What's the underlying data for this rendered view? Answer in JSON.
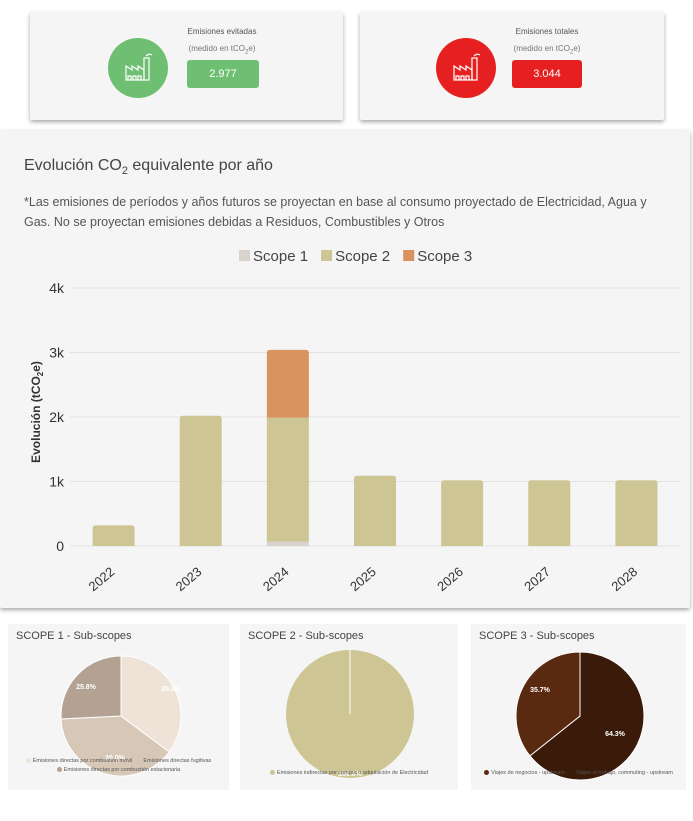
{
  "kpis": {
    "avoided": {
      "title": "Emisiones evitadas",
      "unit_prefix": "(medido en tCO",
      "unit_sub": "2",
      "unit_suffix": "e)",
      "value": "2.977",
      "color": "#6fbf73"
    },
    "total": {
      "title": "Emisiones totales",
      "unit_prefix": "(medido en tCO",
      "unit_sub": "2",
      "unit_suffix": "e)",
      "value": "3.044",
      "color": "#e62020"
    }
  },
  "main": {
    "title_prefix": "Evolución CO",
    "title_sub": "2",
    "title_suffix": " equivalente por año",
    "note": "*Las emisiones de períodos y años futuros se proyectan en base al consumo proyectado de Electricidad, Agua y Gas. No se proyectan emisiones debidas a Residuos, Combustibles y Otros"
  },
  "chart_data": [
    {
      "type": "bar",
      "stacked": true,
      "categories": [
        "2022",
        "2023",
        "2024",
        "2025",
        "2026",
        "2027",
        "2028"
      ],
      "series": [
        {
          "name": "Scope 1",
          "color": "#d8d3cc",
          "values": [
            0,
            0,
            70,
            0,
            0,
            0,
            0
          ]
        },
        {
          "name": "Scope 2",
          "color": "#cdc593",
          "values": [
            320,
            2020,
            1920,
            1090,
            1020,
            1020,
            1020
          ]
        },
        {
          "name": "Scope 3",
          "color": "#d9935f",
          "values": [
            0,
            0,
            1050,
            0,
            0,
            0,
            0
          ]
        }
      ],
      "ylabel_prefix": "Evolución (tCO",
      "ylabel_sub": "2",
      "ylabel_suffix": "e)",
      "yticks": [
        "0",
        "1k",
        "2k",
        "3k",
        "4k"
      ],
      "ylim": [
        0,
        4000
      ],
      "grid": true,
      "legend": "top-center"
    },
    {
      "type": "pie",
      "title": "SCOPE 1 - Sub-scopes",
      "slices": [
        {
          "name": "Emisiones directas por combustión móvil",
          "value": 35.2,
          "label": "35.2%",
          "color": "#efe2d6"
        },
        {
          "name": "Emisiones directas fugitivas",
          "value": 39.0,
          "label": "39.0%",
          "color": "#d6c7b6"
        },
        {
          "name": "Emisiones directas por combustión estacionaria",
          "value": 25.8,
          "label": "25.8%",
          "color": "#b3a291"
        }
      ]
    },
    {
      "type": "pie",
      "title": "SCOPE 2 - Sub-scopes",
      "slices": [
        {
          "name": "Emisiones indirectas por compra o adquisición de Electricidad",
          "value": 100.0,
          "label": "100.0%",
          "color": "#cdc593"
        }
      ]
    },
    {
      "type": "pie",
      "title": "SCOPE 3 - Sub-scopes",
      "slices": [
        {
          "name": "Viajes al trabajo, commuting - upstream",
          "value": 64.3,
          "label": "64.3%",
          "color": "#3a1a08"
        },
        {
          "name": "Viajes de negocios - upstream",
          "value": 35.7,
          "label": "35.7%",
          "color": "#5a2a10"
        }
      ],
      "legend_order": [
        1,
        0
      ]
    }
  ]
}
